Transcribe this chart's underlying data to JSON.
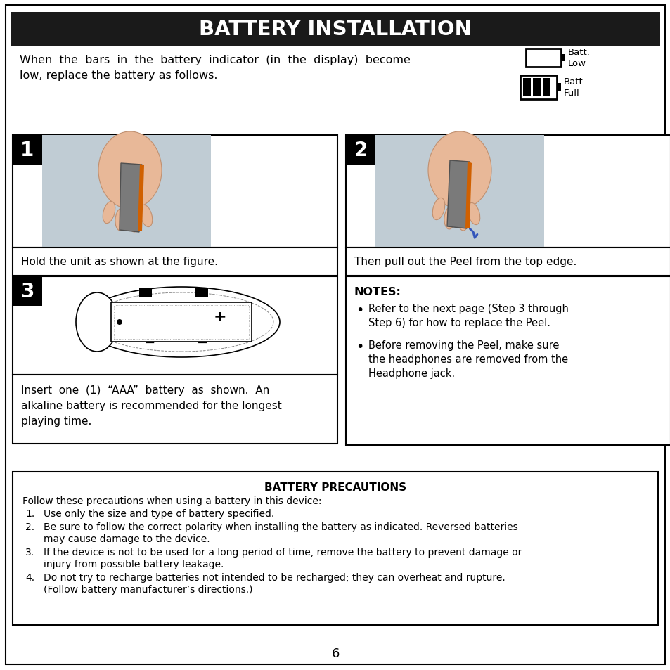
{
  "title": "BATTERY INSTALLATION",
  "title_bg": "#1a1a1a",
  "title_color": "#ffffff",
  "page_bg": "#ffffff",
  "intro_line1": "When  the  bars  in  the  battery  indicator  (in  the  display)  become",
  "intro_line2": "low, replace the battery as follows.",
  "batt_low_label": "Batt.\nLow",
  "batt_full_label": "Batt.\nFull",
  "step1_label": "1",
  "step2_label": "2",
  "step3_label": "3",
  "step1_caption": "Hold the unit as shown at the figure.",
  "step2_caption": "Then pull out the Peel from the top edge.",
  "step3_caption_line1": "Insert  one  (1)  “AAA”  battery  as  shown.  An",
  "step3_caption_line2": "alkaline battery is recommended for the longest",
  "step3_caption_line3": "playing time.",
  "notes_title": "NOTES:",
  "note1_line1": "Refer to the next page (Step 3 through",
  "note1_line2": "Step 6) for how to replace the Peel.",
  "note2_line1": "Before removing the Peel, make sure",
  "note2_line2": "the headphones are removed from the",
  "note2_line3": "Headphone jack.",
  "precautions_title": "BATTERY PRECAUTIONS",
  "precautions_intro": "Follow these precautions when using a battery in this device:",
  "prec1": "Use only the size and type of battery specified.",
  "prec2a": "Be sure to follow the correct polarity when installing the battery as indicated. Reversed batteries",
  "prec2b": "may cause damage to the device.",
  "prec3a": "If the device is not to be used for a long period of time, remove the battery to prevent damage or",
  "prec3b": "injury from possible battery leakage.",
  "prec4a": "Do not try to recharge batteries not intended to be recharged; they can overheat and rupture.",
  "prec4b": "(Follow battery manufacturer’s directions.)",
  "page_number": "6",
  "photo_bg": "#b8c4cc",
  "photo_bg2": "#b0bcc4",
  "skin_color": "#e8b898",
  "device_color": "#909090",
  "orange_color": "#d06000",
  "arrow_color": "#3355bb"
}
